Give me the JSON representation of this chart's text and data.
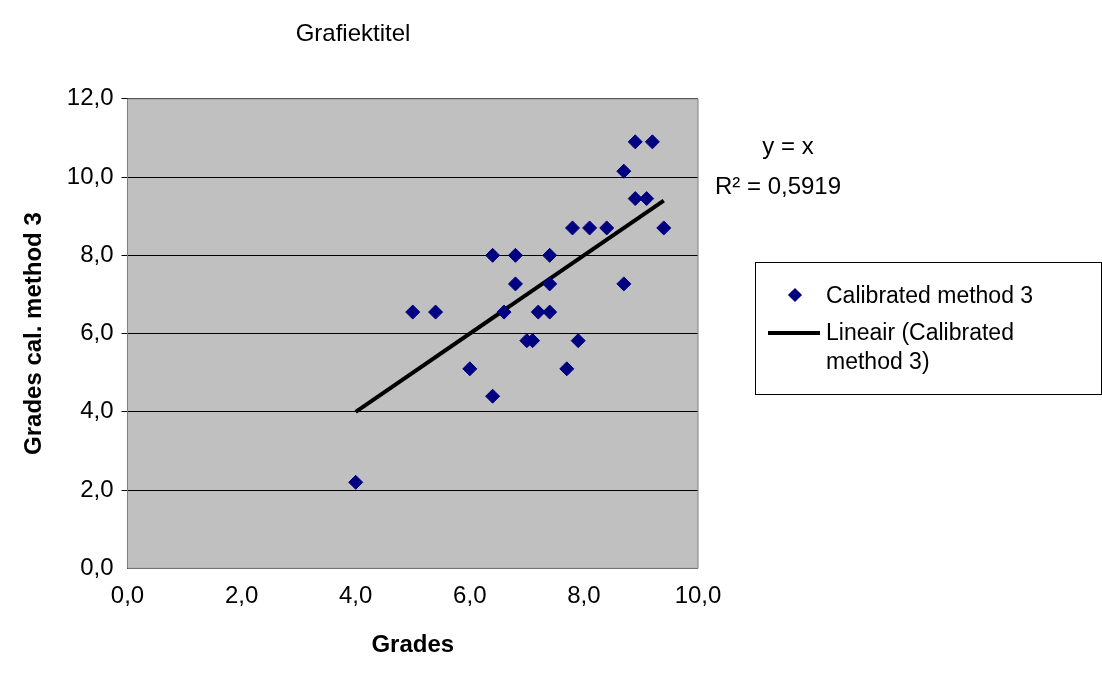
{
  "chart_data": {
    "type": "scatter",
    "title": "Grafiektitel",
    "xlabel": "Grades",
    "ylabel": "Grades cal. method 3",
    "annotations": [
      "y = x",
      "R² = 0,5919"
    ],
    "xlim": [
      0,
      10
    ],
    "ylim": [
      0,
      12
    ],
    "xticks": [
      {
        "value": 0,
        "label": "0,0"
      },
      {
        "value": 2,
        "label": "2,0"
      },
      {
        "value": 4,
        "label": "4,0"
      },
      {
        "value": 6,
        "label": "6,0"
      },
      {
        "value": 8,
        "label": "8,0"
      },
      {
        "value": 10,
        "label": "10,0"
      }
    ],
    "yticks": [
      {
        "value": 0,
        "label": "0,0"
      },
      {
        "value": 2,
        "label": "2,0"
      },
      {
        "value": 4,
        "label": "4,0"
      },
      {
        "value": 6,
        "label": "6,0"
      },
      {
        "value": 8,
        "label": "8,0"
      },
      {
        "value": 10,
        "label": "10,0"
      },
      {
        "value": 12,
        "label": "12,0"
      }
    ],
    "grid": "y",
    "legend": "right",
    "series": [
      {
        "name": "Calibrated method 3",
        "color": "#000080",
        "marker": "diamond",
        "x": [
          4.0,
          5.0,
          5.4,
          6.0,
          6.4,
          6.4,
          6.8,
          6.8,
          6.6,
          7.0,
          7.1,
          7.2,
          7.4,
          7.4,
          7.4,
          7.7,
          7.9,
          7.8,
          8.1,
          8.4,
          8.7,
          8.7,
          8.9,
          9.2,
          8.9,
          9.1,
          9.4
        ],
        "values": [
          2.2,
          6.55,
          6.55,
          5.1,
          4.4,
          8.0,
          8.0,
          7.27,
          6.55,
          5.82,
          5.82,
          6.55,
          6.55,
          7.27,
          8.0,
          5.1,
          5.82,
          8.7,
          8.7,
          8.7,
          7.27,
          10.15,
          10.9,
          10.9,
          9.45,
          9.45,
          8.7
        ]
      },
      {
        "name": "Lineair (Calibrated method 3)",
        "type": "line",
        "color": "#000000",
        "marker": "none",
        "line_style": "solid",
        "x": [
          4.0,
          9.4
        ],
        "values": [
          4.0,
          9.4
        ]
      }
    ]
  }
}
